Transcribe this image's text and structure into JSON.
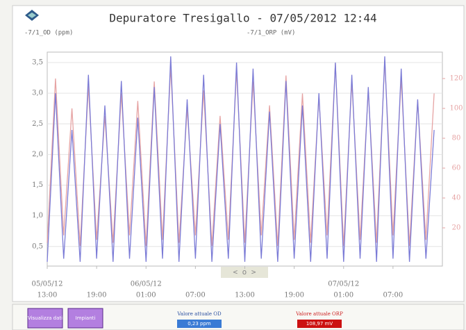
{
  "chart_data": {
    "type": "line",
    "title": "Depuratore Tresigallo - 07/05/2012 12:44",
    "ylabel": "-7/1_OD (ppm)",
    "y2label": "-7/1_ORP (mV)",
    "x": [
      "05/05/12 13:00",
      "05/05/12 14:00",
      "05/05/12 15:00",
      "05/05/12 16:00",
      "05/05/12 17:00",
      "05/05/12 18:00",
      "05/05/12 19:00",
      "05/05/12 20:00",
      "05/05/12 21:00",
      "05/05/12 22:00",
      "05/05/12 23:00",
      "06/05/12 00:00",
      "06/05/12 01:00",
      "06/05/12 02:00",
      "06/05/12 03:00",
      "06/05/12 04:00",
      "06/05/12 05:00",
      "06/05/12 06:00",
      "06/05/12 07:00",
      "06/05/12 08:00",
      "06/05/12 09:00",
      "06/05/12 10:00",
      "06/05/12 11:00",
      "06/05/12 12:00",
      "06/05/12 13:00",
      "06/05/12 14:00",
      "06/05/12 15:00",
      "06/05/12 16:00",
      "06/05/12 17:00",
      "06/05/12 18:00",
      "06/05/12 19:00",
      "06/05/12 20:00",
      "06/05/12 21:00",
      "06/05/12 22:00",
      "06/05/12 23:00",
      "07/05/12 00:00",
      "07/05/12 01:00",
      "07/05/12 02:00",
      "07/05/12 03:00",
      "07/05/12 04:00",
      "07/05/12 05:00",
      "07/05/12 06:00",
      "07/05/12 07:00",
      "07/05/12 08:00",
      "07/05/12 09:00",
      "07/05/12 10:00",
      "07/05/12 11:00",
      "07/05/12 12:00"
    ],
    "series": [
      {
        "name": "-7/1_OD (ppm)",
        "color": "#7b7bd6",
        "values": [
          0.25,
          3.0,
          0.3,
          2.4,
          0.25,
          3.3,
          0.3,
          2.8,
          0.25,
          3.2,
          0.3,
          2.6,
          0.25,
          3.1,
          0.3,
          3.6,
          0.25,
          2.9,
          0.3,
          3.3,
          0.25,
          2.5,
          0.3,
          3.5,
          0.25,
          3.4,
          0.3,
          2.7,
          0.25,
          3.2,
          0.3,
          2.8,
          0.25,
          3.0,
          0.3,
          3.5,
          0.25,
          3.3,
          0.3,
          3.1,
          0.25,
          3.6,
          0.3,
          3.4,
          0.25,
          2.9,
          0.3,
          2.4
        ]
      },
      {
        "name": "-7/1_ORP (mV)",
        "color": "#e6a3a3",
        "axis": "y2",
        "values": [
          10,
          120,
          15,
          100,
          8,
          115,
          12,
          95,
          10,
          110,
          15,
          105,
          8,
          118,
          12,
          128,
          10,
          100,
          15,
          112,
          8,
          95,
          12,
          125,
          10,
          118,
          15,
          102,
          8,
          122,
          12,
          110,
          10,
          108,
          15,
          130,
          8,
          118,
          12,
          112,
          10,
          132,
          15,
          120,
          8,
          105,
          12,
          110
        ]
      }
    ],
    "xlim": [
      "05/05/12 13:00",
      "07/05/12 13:00"
    ],
    "xticks": [
      {
        "value": "05/05/12 13:00",
        "label": "13:00"
      },
      {
        "value": "05/05/12 19:00",
        "label": "19:00"
      },
      {
        "value": "06/05/12 01:00",
        "label": "01:00"
      },
      {
        "value": "06/05/12 07:00",
        "label": "07:00"
      },
      {
        "value": "06/05/12 13:00",
        "label": "13:00"
      },
      {
        "value": "06/05/12 19:00",
        "label": "19:00"
      },
      {
        "value": "07/05/12 01:00",
        "label": "01:00"
      },
      {
        "value": "07/05/12 07:00",
        "label": "07:00"
      }
    ],
    "xdate_labels": [
      {
        "value": "05/05/12 13:00",
        "label": "05/05/12"
      },
      {
        "value": "06/05/12 01:00",
        "label": "06/05/12"
      },
      {
        "value": "07/05/12 01:00",
        "label": "07/05/12"
      }
    ],
    "ylim": [
      0.18,
      3.67
    ],
    "yticks": [
      {
        "value": 0.5,
        "label": "0,5"
      },
      {
        "value": 1,
        "label": "1,0"
      },
      {
        "value": 1.5,
        "label": "1,5"
      },
      {
        "value": 2,
        "label": "2,0"
      },
      {
        "value": 2.5,
        "label": "2,5"
      },
      {
        "value": 3,
        "label": "3,0"
      },
      {
        "value": 3.5,
        "label": "3,5"
      }
    ],
    "y2lim": [
      -5.6,
      137.7
    ],
    "y2ticks": [
      20,
      40,
      60,
      80,
      100,
      120
    ],
    "grid": true
  },
  "nav": "< o >",
  "buttons": [
    "Visualizza dati",
    "Impianti"
  ],
  "status": [
    {
      "label": "Valore attuale OD",
      "value": "0,23 ppm",
      "color": "#3a7bd5"
    },
    {
      "label": "Valore attuale ORP",
      "value": "108,97 mV",
      "color": "#cc1111"
    }
  ]
}
